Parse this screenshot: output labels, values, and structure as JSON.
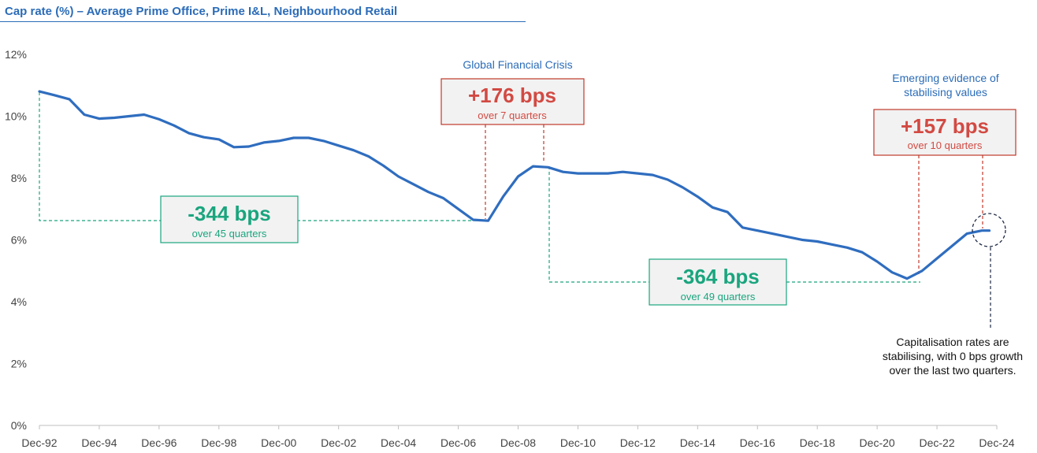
{
  "chart_data": {
    "type": "line",
    "title": "Cap rate (%) – Average Prime Office, Prime I&L, Neighbourhood Retail",
    "xlabel": "",
    "ylabel": "",
    "ylim": [
      0,
      12
    ],
    "y_ticks": [
      "0%",
      "2%",
      "4%",
      "6%",
      "8%",
      "10%",
      "12%"
    ],
    "x_ticks": [
      "Dec-92",
      "Dec-94",
      "Dec-96",
      "Dec-98",
      "Dec-00",
      "Dec-02",
      "Dec-04",
      "Dec-06",
      "Dec-08",
      "Dec-10",
      "Dec-12",
      "Dec-14",
      "Dec-16",
      "Dec-18",
      "Dec-20",
      "Dec-22",
      "Dec-24"
    ],
    "grid": false,
    "series": [
      {
        "color": "#2f6dbf",
        "points": [
          [
            "Dec-92",
            10.8
          ],
          [
            "Jun-93",
            10.68
          ],
          [
            "Dec-93",
            10.55
          ],
          [
            "Jun-94",
            10.05
          ],
          [
            "Dec-94",
            9.92
          ],
          [
            "Jun-95",
            9.95
          ],
          [
            "Dec-95",
            10.0
          ],
          [
            "Jun-96",
            10.05
          ],
          [
            "Dec-96",
            9.9
          ],
          [
            "Jun-97",
            9.7
          ],
          [
            "Dec-97",
            9.45
          ],
          [
            "Jun-98",
            9.32
          ],
          [
            "Dec-98",
            9.25
          ],
          [
            "Jun-99",
            9.0
          ],
          [
            "Dec-99",
            9.02
          ],
          [
            "Jun-00",
            9.15
          ],
          [
            "Dec-00",
            9.2
          ],
          [
            "Jun-01",
            9.3
          ],
          [
            "Dec-01",
            9.3
          ],
          [
            "Jun-02",
            9.2
          ],
          [
            "Dec-02",
            9.05
          ],
          [
            "Jun-03",
            8.9
          ],
          [
            "Dec-03",
            8.7
          ],
          [
            "Jun-04",
            8.4
          ],
          [
            "Dec-04",
            8.05
          ],
          [
            "Jun-05",
            7.8
          ],
          [
            "Dec-05",
            7.55
          ],
          [
            "Jun-06",
            7.35
          ],
          [
            "Dec-06",
            7.0
          ],
          [
            "Jun-07",
            6.65
          ],
          [
            "Dec-07",
            6.62
          ],
          [
            "Jun-08",
            7.4
          ],
          [
            "Dec-08",
            8.05
          ],
          [
            "Jun-09",
            8.38
          ],
          [
            "Dec-09",
            8.35
          ],
          [
            "Jun-10",
            8.2
          ],
          [
            "Dec-10",
            8.15
          ],
          [
            "Jun-11",
            8.15
          ],
          [
            "Dec-11",
            8.15
          ],
          [
            "Jun-12",
            8.2
          ],
          [
            "Dec-12",
            8.15
          ],
          [
            "Jun-13",
            8.1
          ],
          [
            "Dec-13",
            7.95
          ],
          [
            "Jun-14",
            7.7
          ],
          [
            "Dec-14",
            7.4
          ],
          [
            "Jun-15",
            7.05
          ],
          [
            "Dec-15",
            6.9
          ],
          [
            "Jun-16",
            6.4
          ],
          [
            "Dec-16",
            6.3
          ],
          [
            "Jun-17",
            6.2
          ],
          [
            "Dec-17",
            6.1
          ],
          [
            "Jun-18",
            6.0
          ],
          [
            "Dec-18",
            5.95
          ],
          [
            "Jun-19",
            5.85
          ],
          [
            "Dec-19",
            5.75
          ],
          [
            "Jun-20",
            5.6
          ],
          [
            "Dec-20",
            5.3
          ],
          [
            "Jun-21",
            4.95
          ],
          [
            "Dec-21",
            4.75
          ],
          [
            "Jun-22",
            5.0
          ],
          [
            "Dec-22",
            5.4
          ],
          [
            "Jun-23",
            5.8
          ],
          [
            "Dec-23",
            6.2
          ],
          [
            "Jun-24",
            6.3
          ],
          [
            "Sep-24",
            6.3
          ]
        ]
      }
    ],
    "annotations": {
      "gfc_label": "Global Financial Crisis",
      "stabilising_label_line1": "Emerging evidence of",
      "stabilising_label_line2": "stabilising values",
      "box1_value": "-344 bps",
      "box1_sub": "over 45 quarters",
      "box2_value": "+176 bps",
      "box2_sub": "over 7 quarters",
      "box3_value": "-364 bps",
      "box3_sub": "over 49 quarters",
      "box4_value": "+157 bps",
      "box4_sub": "over 10 quarters",
      "note_line1": "Capitalisation rates are",
      "note_line2": "stabilising, with 0 bps growth",
      "note_line3": "over the last two quarters."
    }
  }
}
